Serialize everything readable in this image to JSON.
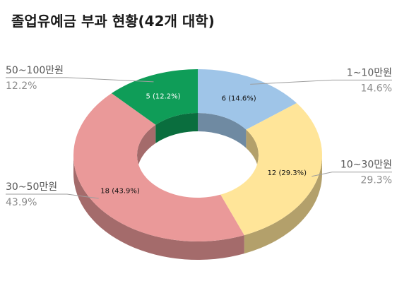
{
  "chart_data": {
    "type": "pie",
    "title": "졸업유예금 부과 현황(42개 대학)",
    "series": [
      {
        "name": "1~10만원",
        "value": 6,
        "percent": "14.6%",
        "data_label": "6 (14.6%)",
        "color": "#9fc5e8",
        "side_color": "#6f8aa2",
        "label_color": "#111111"
      },
      {
        "name": "10~30만원",
        "value": 12,
        "percent": "29.3%",
        "data_label": "12 (29.3%)",
        "color": "#ffe599",
        "side_color": "#b3a06b",
        "label_color": "#111111"
      },
      {
        "name": "30~50만원",
        "value": 18,
        "percent": "43.9%",
        "data_label": "18 (43.9%)",
        "color": "#ea9999",
        "side_color": "#a46b6b",
        "label_color": "#111111"
      },
      {
        "name": "50~100만원",
        "value": 5,
        "percent": "12.2%",
        "data_label": "5 (12.2%)",
        "color": "#0f9d58",
        "side_color": "#0a6e3e",
        "label_color": "#ffffff"
      }
    ],
    "legend": "outside labels with leader lines"
  }
}
